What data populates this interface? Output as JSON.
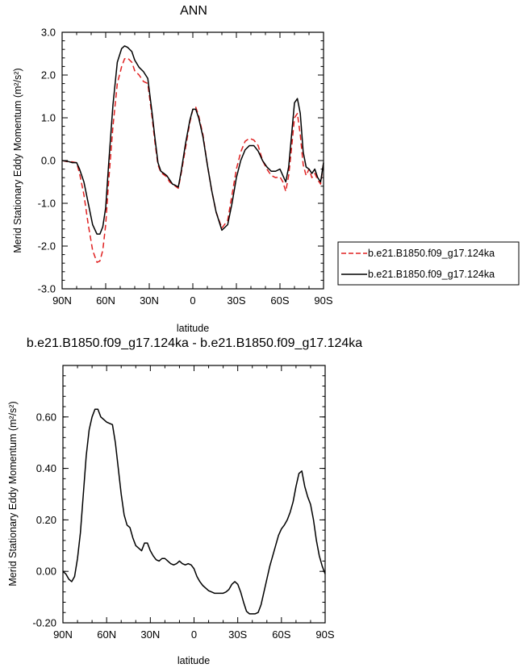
{
  "chart_data": [
    {
      "type": "line",
      "title": "ANN",
      "xlabel": "latitude",
      "ylabel": "Merid Stationary Eddy Momentum (m²/s²)",
      "xlim": [
        90,
        -90
      ],
      "ylim": [
        -3.0,
        3.0
      ],
      "xticks": [
        90,
        60,
        30,
        0,
        -30,
        -60,
        -90
      ],
      "xtick_labels": [
        "90N",
        "60N",
        "30N",
        "0",
        "30S",
        "60S",
        "90S"
      ],
      "yticks": [
        -3,
        -2,
        -1,
        0,
        1,
        2,
        3
      ],
      "ytick_labels": [
        "-3.0",
        "-2.0",
        "-1.0",
        "0.0",
        "1.0",
        "2.0",
        "3.0"
      ],
      "grid": false,
      "legend_position": "outside-right",
      "series": [
        {
          "name": "b.e21.B1850.f09_g17.124ka",
          "color": "#e02020",
          "dash": "dashed",
          "x": [
            90,
            86,
            83,
            80,
            78,
            75,
            72,
            69,
            66,
            64,
            62,
            60,
            58,
            55,
            52,
            49,
            47,
            45,
            42,
            40,
            37,
            34,
            31,
            28,
            26,
            24,
            22,
            20,
            18,
            16,
            14,
            12,
            10,
            8,
            5,
            2,
            0,
            -2,
            -4,
            -7,
            -10,
            -13,
            -16,
            -20,
            -24,
            -27,
            -30,
            -33,
            -36,
            -39,
            -42,
            -45,
            -48,
            -51,
            -54,
            -57,
            -60,
            -62,
            -64,
            -66,
            -68,
            -70,
            -72,
            -74,
            -76,
            -78,
            -80,
            -82,
            -84,
            -86,
            -88,
            -90
          ],
          "y": [
            0.0,
            -0.03,
            -0.03,
            -0.05,
            -0.3,
            -0.8,
            -1.5,
            -2.1,
            -2.38,
            -2.35,
            -2.1,
            -1.5,
            -0.5,
            0.8,
            1.8,
            2.2,
            2.38,
            2.4,
            2.3,
            2.1,
            2.0,
            1.85,
            1.8,
            1.0,
            0.4,
            -0.1,
            -0.28,
            -0.33,
            -0.38,
            -0.5,
            -0.55,
            -0.6,
            -0.65,
            -0.3,
            0.3,
            0.9,
            1.2,
            1.25,
            1.05,
            0.6,
            -0.1,
            -0.7,
            -1.2,
            -1.58,
            -1.4,
            -0.8,
            -0.2,
            0.2,
            0.45,
            0.52,
            0.48,
            0.35,
            0.0,
            -0.2,
            -0.35,
            -0.4,
            -0.38,
            -0.5,
            -0.72,
            -0.35,
            0.3,
            1.0,
            1.1,
            0.6,
            -0.1,
            -0.35,
            -0.2,
            -0.4,
            -0.3,
            -0.45,
            -0.55,
            -0.05
          ]
        },
        {
          "name": "b.e21.B1850.f09_g17.124ka",
          "color": "#000000",
          "dash": "solid",
          "x": [
            90,
            86,
            83,
            80,
            78,
            75,
            72,
            69,
            66,
            64,
            62,
            60,
            58,
            55,
            52,
            49,
            47,
            45,
            42,
            40,
            37,
            34,
            31,
            28,
            26,
            24,
            22,
            20,
            18,
            16,
            14,
            12,
            10,
            8,
            5,
            2,
            0,
            -2,
            -4,
            -7,
            -10,
            -13,
            -16,
            -20,
            -24,
            -27,
            -30,
            -33,
            -36,
            -39,
            -42,
            -45,
            -48,
            -51,
            -54,
            -57,
            -60,
            -62,
            -64,
            -66,
            -68,
            -70,
            -72,
            -74,
            -76,
            -78,
            -80,
            -82,
            -84,
            -86,
            -88,
            -90
          ],
          "y": [
            0.0,
            -0.02,
            -0.05,
            -0.05,
            -0.2,
            -0.5,
            -1.0,
            -1.5,
            -1.72,
            -1.72,
            -1.55,
            -1.1,
            -0.1,
            1.3,
            2.3,
            2.62,
            2.68,
            2.65,
            2.55,
            2.35,
            2.18,
            2.08,
            1.92,
            1.1,
            0.5,
            -0.05,
            -0.25,
            -0.3,
            -0.35,
            -0.45,
            -0.55,
            -0.58,
            -0.62,
            -0.25,
            0.4,
            0.95,
            1.2,
            1.2,
            1.0,
            0.55,
            -0.1,
            -0.7,
            -1.2,
            -1.63,
            -1.5,
            -1.0,
            -0.4,
            0.0,
            0.25,
            0.35,
            0.35,
            0.22,
            0.0,
            -0.15,
            -0.25,
            -0.25,
            -0.2,
            -0.35,
            -0.5,
            -0.15,
            0.6,
            1.35,
            1.45,
            1.1,
            0.2,
            -0.15,
            -0.2,
            -0.3,
            -0.2,
            -0.4,
            -0.5,
            -0.05
          ]
        }
      ]
    },
    {
      "type": "line",
      "title": "b.e21.B1850.f09_g17.124ka - b.e21.B1850.f09_g17.124ka",
      "xlabel": "latitude",
      "ylabel": "Merid Stationary Eddy Momentum (m²/s²)",
      "xlim": [
        90,
        -90
      ],
      "ylim": [
        -0.2,
        0.8
      ],
      "xticks": [
        90,
        60,
        30,
        0,
        -30,
        -60,
        -90
      ],
      "xtick_labels": [
        "90N",
        "60N",
        "30N",
        "0",
        "30S",
        "60S",
        "90S"
      ],
      "yticks": [
        -0.2,
        0.0,
        0.2,
        0.4,
        0.6
      ],
      "ytick_labels": [
        "-0.20",
        "0.00",
        "0.20",
        "0.40",
        "0.60"
      ],
      "grid": false,
      "series": [
        {
          "color": "#000000",
          "dash": "solid",
          "x": [
            90,
            88,
            86,
            84,
            82,
            80,
            78,
            76,
            74,
            72,
            70,
            68,
            66,
            64,
            62,
            60,
            58,
            56,
            54,
            52,
            50,
            48,
            46,
            44,
            42,
            40,
            38,
            36,
            34,
            32,
            30,
            28,
            26,
            24,
            22,
            20,
            18,
            16,
            14,
            12,
            10,
            8,
            6,
            4,
            2,
            0,
            -2,
            -4,
            -6,
            -8,
            -10,
            -12,
            -14,
            -16,
            -18,
            -20,
            -22,
            -24,
            -26,
            -28,
            -30,
            -32,
            -34,
            -36,
            -38,
            -40,
            -42,
            -44,
            -46,
            -48,
            -50,
            -52,
            -54,
            -56,
            -58,
            -60,
            -62,
            -64,
            -66,
            -68,
            -70,
            -72,
            -74,
            -76,
            -78,
            -80,
            -82,
            -84,
            -86,
            -88,
            -90
          ],
          "y": [
            0.0,
            -0.01,
            -0.03,
            -0.04,
            -0.02,
            0.05,
            0.15,
            0.3,
            0.45,
            0.55,
            0.6,
            0.63,
            0.63,
            0.6,
            0.59,
            0.58,
            0.575,
            0.57,
            0.5,
            0.4,
            0.3,
            0.22,
            0.18,
            0.17,
            0.13,
            0.1,
            0.09,
            0.08,
            0.11,
            0.11,
            0.08,
            0.06,
            0.045,
            0.04,
            0.05,
            0.05,
            0.04,
            0.03,
            0.025,
            0.03,
            0.04,
            0.03,
            0.025,
            0.03,
            0.025,
            0.01,
            -0.02,
            -0.04,
            -0.055,
            -0.065,
            -0.075,
            -0.08,
            -0.085,
            -0.085,
            -0.085,
            -0.085,
            -0.08,
            -0.07,
            -0.05,
            -0.04,
            -0.05,
            -0.08,
            -0.12,
            -0.155,
            -0.165,
            -0.165,
            -0.165,
            -0.16,
            -0.13,
            -0.08,
            -0.03,
            0.02,
            0.06,
            0.1,
            0.14,
            0.165,
            0.18,
            0.2,
            0.23,
            0.27,
            0.33,
            0.38,
            0.39,
            0.33,
            0.29,
            0.26,
            0.2,
            0.12,
            0.06,
            0.02,
            -0.01
          ]
        }
      ]
    }
  ]
}
